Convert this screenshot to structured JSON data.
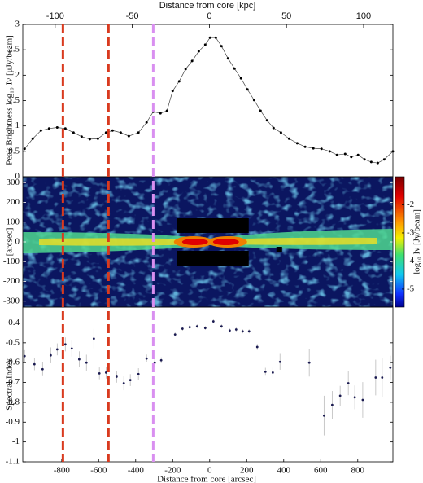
{
  "chart_data": [
    {
      "type": "line",
      "ylabel": "Peak Brightness log₁₀ Iν [μJy/beam]",
      "x2label": "Distance from core [kpc]",
      "x2lim": [
        -121,
        119
      ],
      "x2ticks": [
        -100,
        -50,
        0,
        50,
        100
      ],
      "xlim": [
        -1010,
        990
      ],
      "ylim": [
        0,
        3
      ],
      "yticks": [
        0,
        0.5,
        1,
        1.5,
        2,
        2.5,
        3
      ],
      "color": "#444444",
      "x": [
        -1000,
        -956,
        -912,
        -868,
        -824,
        -780,
        -736,
        -692,
        -648,
        -604,
        -560,
        -525,
        -481,
        -437,
        -385,
        -341,
        -305,
        -266,
        -231,
        -200,
        -165,
        -130,
        -95,
        -59,
        -24,
        2,
        33,
        64,
        99,
        134,
        169,
        204,
        240,
        275,
        310,
        345,
        385,
        429,
        473,
        516,
        560,
        604,
        648,
        688,
        732,
        765,
        802,
        837,
        873,
        908,
        943,
        990
      ],
      "values": [
        0.55,
        0.75,
        0.91,
        0.95,
        0.97,
        0.95,
        0.87,
        0.79,
        0.74,
        0.75,
        0.87,
        0.91,
        0.87,
        0.8,
        0.87,
        1.07,
        1.28,
        1.25,
        1.3,
        1.69,
        1.88,
        2.12,
        2.28,
        2.47,
        2.6,
        2.74,
        2.74,
        2.57,
        2.33,
        2.13,
        1.94,
        1.72,
        1.51,
        1.3,
        1.11,
        0.96,
        0.87,
        0.75,
        0.66,
        0.59,
        0.56,
        0.55,
        0.5,
        0.43,
        0.45,
        0.39,
        0.43,
        0.34,
        0.29,
        0.27,
        0.34,
        0.5
      ],
      "vlines": [
        {
          "x": -793,
          "color": "#d93a1e"
        },
        {
          "x": -547,
          "color": "#d93a1e"
        },
        {
          "x": -305,
          "color": "#d98ff0"
        }
      ]
    },
    {
      "type": "image",
      "ylabel": "[arcsec]",
      "xlim": [
        -1010,
        990
      ],
      "ylim": [
        -330,
        330
      ],
      "yticks": [
        300,
        200,
        100,
        0,
        -100,
        -200,
        -300
      ],
      "colorbar_label": "log₁₀ Iν [Jy/beam]",
      "clim": [
        -5.64,
        -1
      ],
      "cticks": [
        -2,
        -3,
        -4,
        -5
      ]
    },
    {
      "type": "errorbar",
      "xlabel": "Distance from core [arcsec]",
      "ylabel": "Spectral Index",
      "xlim": [
        -1010,
        990
      ],
      "xticks": [
        -800,
        -600,
        -400,
        -200,
        0,
        200,
        400,
        600,
        800
      ],
      "ylim": [
        -1.1,
        -0.32
      ],
      "yticks": [
        -0.4,
        -0.5,
        -0.6,
        -0.7,
        -0.8,
        -0.9,
        -1,
        -1.1
      ],
      "color": "#1a1a50",
      "error_color": "#bbbbbb",
      "x": [
        -1000,
        -947,
        -903,
        -859,
        -824,
        -780,
        -745,
        -705,
        -666,
        -626,
        -596,
        -560,
        -503,
        -464,
        -429,
        -385,
        -341,
        -297,
        -262,
        -187,
        -147,
        -108,
        -68,
        -24,
        20,
        64,
        108,
        143,
        178,
        213,
        257,
        301,
        341,
        380,
        538,
        618,
        662,
        705,
        749,
        784,
        827,
        897,
        932,
        976
      ],
      "values": [
        -0.567,
        -0.608,
        -0.633,
        -0.563,
        -0.533,
        -0.508,
        -0.529,
        -0.583,
        -0.6,
        -0.479,
        -0.654,
        -0.65,
        -0.671,
        -0.704,
        -0.688,
        -0.658,
        -0.579,
        -0.6,
        -0.588,
        -0.458,
        -0.429,
        -0.421,
        -0.417,
        -0.425,
        -0.392,
        -0.417,
        -0.438,
        -0.433,
        -0.442,
        -0.442,
        -0.521,
        -0.646,
        -0.65,
        -0.596,
        -0.6,
        -0.867,
        -0.813,
        -0.767,
        -0.704,
        -0.775,
        -0.788,
        -0.675,
        -0.675,
        -0.625
      ],
      "errors": [
        0.03,
        0.03,
        0.035,
        0.04,
        0.03,
        0.035,
        0.04,
        0.04,
        0.04,
        0.05,
        0.03,
        0.03,
        0.03,
        0.035,
        0.03,
        0.03,
        0.02,
        0.02,
        0.015,
        0.01,
        0.01,
        0.01,
        0.01,
        0.01,
        0.01,
        0.01,
        0.01,
        0.01,
        0.01,
        0.01,
        0.015,
        0.02,
        0.025,
        0.04,
        0.07,
        0.1,
        0.07,
        0.05,
        0.06,
        0.06,
        0.09,
        0.09,
        0.1,
        0.06
      ]
    }
  ]
}
